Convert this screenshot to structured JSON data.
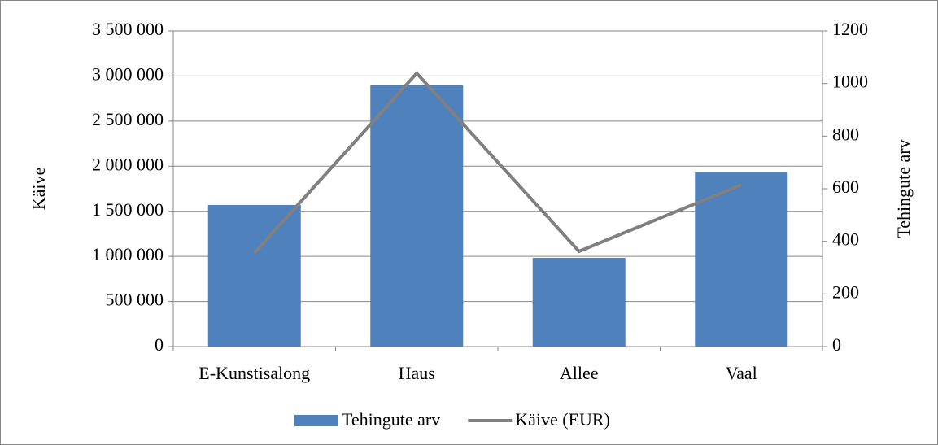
{
  "chart_data": {
    "type": "bar-line",
    "categories": [
      "E-Kunstisalong",
      "Haus",
      "Allee",
      "Vaal"
    ],
    "series": [
      {
        "name": "Tehingute arv",
        "type": "bar",
        "color": "#4f81bd",
        "values": [
          1570000,
          2900000,
          983000,
          1930000
        ]
      },
      {
        "name": "Käive (EUR)",
        "type": "line",
        "color": "#808080",
        "axis": "y2",
        "values": [
          356,
          1039,
          362,
          615
        ]
      }
    ],
    "ylabel": "Käive",
    "y2label": "Tehingute arv",
    "ylim": [
      0,
      3500000
    ],
    "yticks": [
      0,
      {
        "value": 500000,
        "label": "500 000"
      },
      {
        "value": 1000000,
        "label": "1 000 000"
      },
      {
        "value": 1500000,
        "label": "1 500 000"
      },
      {
        "value": 2000000,
        "label": "2 000 000"
      },
      {
        "value": 2500000,
        "label": "2 500 000"
      },
      {
        "value": 3000000,
        "label": "3 000 000"
      },
      {
        "value": 3500000,
        "label": "3 500 000"
      }
    ],
    "y2lim": [
      0,
      1200
    ],
    "y2ticks": [
      0,
      200,
      400,
      600,
      800,
      1000,
      1200
    ],
    "grid": true,
    "legend": "bottom"
  }
}
